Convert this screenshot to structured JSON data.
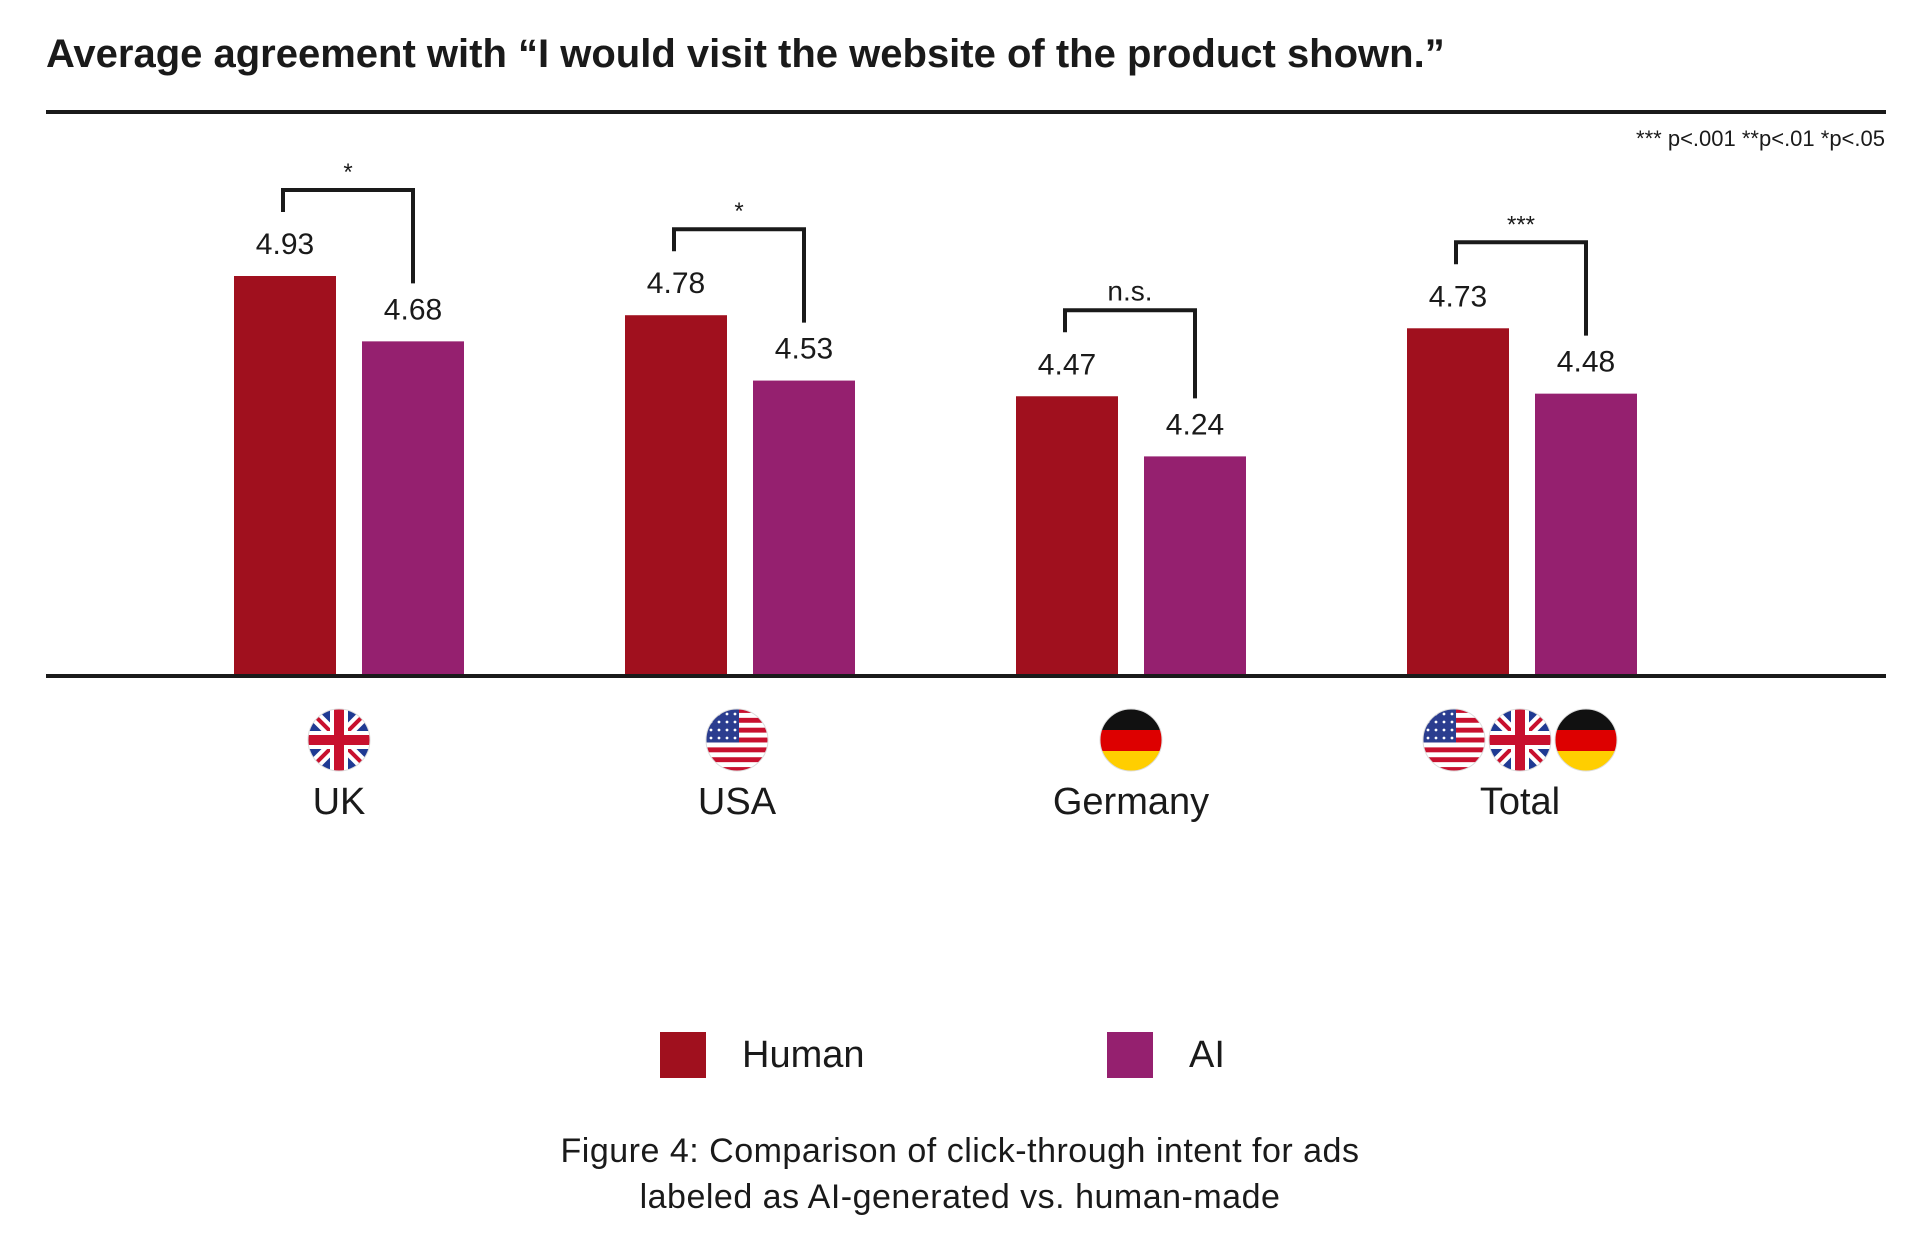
{
  "title": "Average agreement with “I would visit the website of the product shown.”",
  "significance_note": "*** p<.001 **p<.01 *p<.05",
  "colors": {
    "human": "#a0101e",
    "ai": "#95206f",
    "axis": "#1a1a1a"
  },
  "chart_data": {
    "type": "bar",
    "categories": [
      "UK",
      "USA",
      "Germany",
      "Total"
    ],
    "category_flags": [
      [
        "uk-flag"
      ],
      [
        "usa-flag"
      ],
      [
        "germany-flag"
      ],
      [
        "usa-flag",
        "uk-flag",
        "germany-flag"
      ]
    ],
    "series": [
      {
        "name": "Human",
        "values": [
          4.93,
          4.78,
          4.47,
          4.73
        ]
      },
      {
        "name": "AI",
        "values": [
          4.68,
          4.53,
          4.24,
          4.48
        ]
      }
    ],
    "value_labels": [
      [
        "4.93",
        "4.68"
      ],
      [
        "4.78",
        "4.53"
      ],
      [
        "4.47",
        "4.24"
      ],
      [
        "4.73",
        "4.48"
      ]
    ],
    "significance": [
      "*",
      "*",
      "n.s.",
      "***"
    ],
    "ylim": [
      3.4,
      5.2
    ],
    "grid": false,
    "legend_position": "bottom"
  },
  "legend": [
    {
      "label": "Human"
    },
    {
      "label": "AI"
    }
  ],
  "caption": {
    "line1": "Figure 4: Comparison of click-through intent for ads",
    "line2": "labeled as AI-generated vs. human-made"
  }
}
